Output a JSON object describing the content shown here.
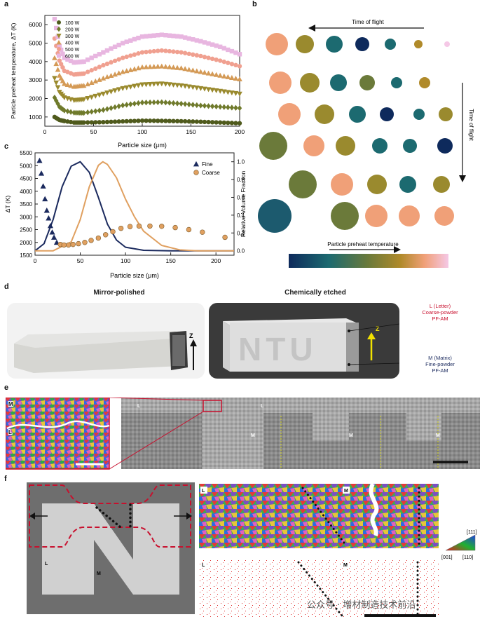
{
  "panel_labels": [
    "a",
    "b",
    "c",
    "d",
    "e",
    "f"
  ],
  "chart_data": [
    {
      "type": "scatter",
      "panel": "a",
      "xlabel": "Particle size (μm)",
      "ylabel": "Particle preheat temperature, ΔT (K)",
      "xlim": [
        0,
        200
      ],
      "ylim": [
        500,
        6500
      ],
      "xticks": [
        0,
        50,
        100,
        150,
        200
      ],
      "yticks": [
        1000,
        2000,
        3000,
        4000,
        5000,
        6000
      ],
      "legend_position": "top-left",
      "series": [
        {
          "name": "100 W",
          "color": "#4f5a1c",
          "marker": "circle",
          "x": [
            10,
            15,
            20,
            30,
            40,
            60,
            80,
            100,
            120,
            140,
            160,
            180,
            200
          ],
          "y": [
            1000,
            840,
            780,
            700,
            700,
            720,
            760,
            800,
            790,
            770,
            740,
            700,
            660
          ]
        },
        {
          "name": "200 W",
          "color": "#6f7a2b",
          "marker": "diamond",
          "x": [
            10,
            15,
            20,
            30,
            40,
            60,
            80,
            100,
            120,
            140,
            160,
            180,
            200
          ],
          "y": [
            2050,
            1550,
            1350,
            1230,
            1220,
            1380,
            1630,
            1780,
            1800,
            1720,
            1620,
            1550,
            1480
          ]
        },
        {
          "name": "300 W",
          "color": "#9a8a2e",
          "marker": "triangle-down",
          "x": [
            10,
            15,
            20,
            30,
            40,
            60,
            80,
            100,
            120,
            140,
            160,
            180,
            200
          ],
          "y": [
            3100,
            2350,
            2050,
            1900,
            1950,
            2250,
            2550,
            2750,
            2800,
            2700,
            2550,
            2400,
            2250
          ]
        },
        {
          "name": "400 W",
          "color": "#d49a56",
          "marker": "triangle-up",
          "x": [
            10,
            15,
            20,
            30,
            40,
            60,
            80,
            100,
            120,
            140,
            160,
            180,
            200
          ],
          "y": [
            4200,
            3250,
            2800,
            2650,
            2700,
            3100,
            3450,
            3700,
            3750,
            3650,
            3450,
            3250,
            3050
          ]
        },
        {
          "name": "500 W",
          "color": "#f0a090",
          "marker": "circle",
          "x": [
            10,
            15,
            20,
            30,
            40,
            60,
            80,
            100,
            120,
            140,
            160,
            180,
            200
          ],
          "y": [
            5250,
            4050,
            3500,
            3300,
            3350,
            3800,
            4200,
            4500,
            4600,
            4500,
            4300,
            4050,
            3750
          ]
        },
        {
          "name": "600 W",
          "color": "#e8b6e0",
          "marker": "square",
          "x": [
            10,
            15,
            20,
            30,
            40,
            60,
            80,
            100,
            120,
            140,
            160,
            180,
            200
          ],
          "y": [
            6300,
            4850,
            4200,
            3950,
            4000,
            4500,
            5000,
            5350,
            5450,
            5350,
            5100,
            4800,
            4400
          ]
        }
      ]
    },
    {
      "type": "scatter",
      "panel": "c",
      "xlabel": "Particle size (μm)",
      "ylabel": "ΔT (K)",
      "y2label": "Relative Volume Fraction",
      "xlim": [
        0,
        220
      ],
      "ylim": [
        1500,
        5500
      ],
      "y2lim": [
        -0.05,
        1.1
      ],
      "xticks": [
        0,
        50,
        100,
        150,
        200
      ],
      "yticks": [
        1500,
        2000,
        2500,
        3000,
        3500,
        4000,
        4500,
        5000,
        5500
      ],
      "y2ticks": [
        0.0,
        0.2,
        0.4,
        0.6,
        0.8,
        1.0
      ],
      "legend_position": "top-right",
      "series": [
        {
          "name": "Fine",
          "color": "#1b2a5e",
          "marker": "triangle-up",
          "x": [
            5,
            7,
            9,
            11,
            13,
            15,
            17,
            19,
            21,
            24
          ],
          "y": [
            5200,
            4700,
            4200,
            3700,
            3250,
            2950,
            2650,
            2400,
            2200,
            2000
          ]
        },
        {
          "name": "Coarse",
          "color": "#e0a060",
          "marker": "circle",
          "x": [
            28,
            32,
            37,
            42,
            48,
            55,
            62,
            70,
            78,
            86,
            95,
            105,
            115,
            127,
            140,
            155,
            170,
            185,
            210
          ],
          "y": [
            1920,
            1900,
            1900,
            1920,
            1950,
            2000,
            2080,
            2170,
            2300,
            2420,
            2550,
            2620,
            2640,
            2640,
            2630,
            2580,
            2500,
            2400,
            2200
          ]
        },
        {
          "name": "Fine distribution",
          "color": "#1b2a5e",
          "line": true,
          "x": [
            0,
            10,
            20,
            30,
            40,
            50,
            60,
            70,
            80,
            90,
            100,
            120,
            150,
            200,
            220
          ],
          "y2": [
            0.0,
            0.08,
            0.35,
            0.72,
            0.95,
            1.0,
            0.88,
            0.6,
            0.3,
            0.12,
            0.04,
            0.005,
            0,
            0,
            0
          ]
        },
        {
          "name": "Coarse distribution",
          "color": "#e0a060",
          "line": true,
          "x": [
            0,
            20,
            40,
            50,
            60,
            70,
            75,
            80,
            90,
            100,
            110,
            120,
            140,
            160,
            180,
            220
          ],
          "y2": [
            0.0,
            0.0,
            0.1,
            0.35,
            0.72,
            0.96,
            1.0,
            0.97,
            0.82,
            0.58,
            0.38,
            0.22,
            0.06,
            0.01,
            0.0,
            0.0
          ]
        }
      ]
    }
  ],
  "panel_a": {
    "ylabel": "Particle preheat temperature, ΔT (K)",
    "xlabel": "Particle size (μm)",
    "legend": [
      "100 W",
      "200 W",
      "300 W",
      "400 W",
      "500 W",
      "600 W"
    ]
  },
  "panel_b": {
    "top_arrow_label": "Time of flight",
    "side_arrow_label": "Time of flight",
    "colorbar_label": "Particle preheat temperature",
    "colorbar_colors": [
      "#0e2a5c",
      "#1c6a70",
      "#6b7a3a",
      "#b08a2a",
      "#f0a078",
      "#f5c8e6"
    ]
  },
  "panel_c": {
    "ylabel": "ΔT (K)",
    "y2label": "Relative Volume Fraction",
    "xlabel": "Particle size (μm)",
    "legend": [
      "Fine",
      "Coarse"
    ]
  },
  "panel_d": {
    "left_title": "Mirror-polished",
    "right_title": "Chemically etched",
    "letter_caption": [
      "L (Letter)",
      "Coarse-powder",
      "PF-AM"
    ],
    "matrix_caption": [
      "M (Matrix)",
      "Fine-powder",
      "PF-AM"
    ],
    "z_label": "Z",
    "letters": "NTU"
  },
  "panel_e": {
    "labels": [
      "M",
      "L",
      "L",
      "L",
      "M",
      "M",
      "M"
    ]
  },
  "panel_f": {
    "labels_left": [
      "L",
      "M"
    ],
    "labels_right": [
      "L",
      "M",
      "L",
      "M"
    ],
    "ipf_labels": [
      "[111]",
      "[001]",
      "[110]"
    ]
  },
  "watermark": "公众号 · 增材制造技术前沿"
}
